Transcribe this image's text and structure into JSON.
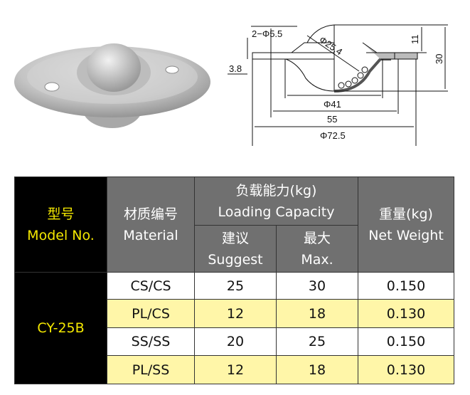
{
  "drawing": {
    "holes": "2−Φ5.5",
    "ball_dia": "Φ25.4",
    "top_height": "11",
    "total_height": "30",
    "flange_thickness": "3.8",
    "inner_dia": "Φ41",
    "hole_pitch": "55",
    "outer_dia": "Φ72.5"
  },
  "table": {
    "headers": {
      "model_cn": "型号",
      "model_en": "Model No.",
      "material_cn": "材质编号",
      "material_en": "Material",
      "capacity_cn": "负载能力(kg)",
      "capacity_en": "Loading Capacity",
      "suggest_cn": "建议",
      "suggest_en": "Suggest",
      "max_cn": "最大",
      "max_en": "Max.",
      "weight_cn": "重量(kg)",
      "weight_en": "Net Weight"
    },
    "model": "CY-25B",
    "rows": [
      {
        "material": "CS/CS",
        "suggest": "25",
        "max": "30",
        "weight": "0.150"
      },
      {
        "material": "PL/CS",
        "suggest": "12",
        "max": "18",
        "weight": "0.130"
      },
      {
        "material": "SS/SS",
        "suggest": "20",
        "max": "25",
        "weight": "0.150"
      },
      {
        "material": "PL/SS",
        "suggest": "12",
        "max": "18",
        "weight": "0.130"
      }
    ],
    "colors": {
      "header": "#707070",
      "model_bg": "#000000",
      "model_text": "#f4e800",
      "highlight_row": "#fff6a8"
    }
  }
}
